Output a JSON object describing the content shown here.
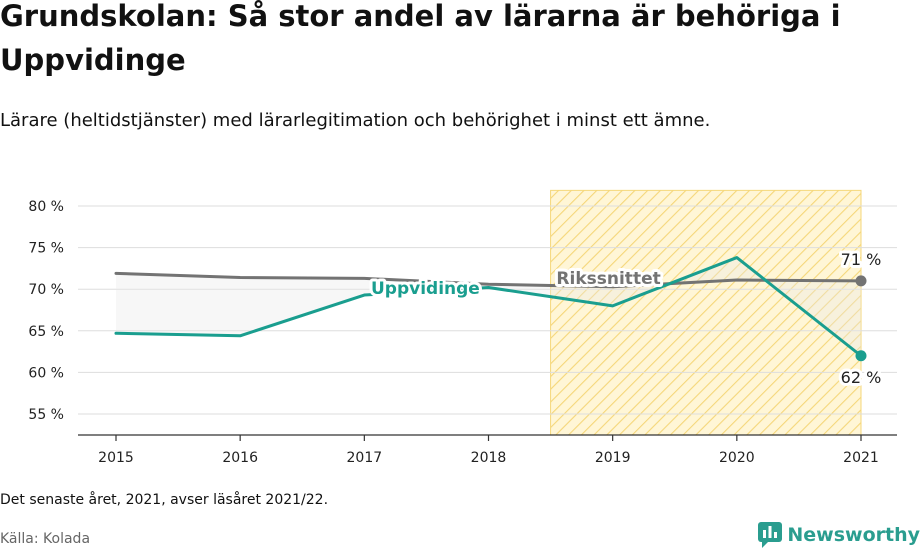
{
  "title": "Grundskolan: Så stor andel av lärarna är behöriga i Uppvidinge",
  "subtitle": "Lärare (heltidstjänster) med lärarlegitimation och behörighet i minst ett ämne.",
  "footnote": "Det senaste året, 2021, avser läsåret 2021/22.",
  "source": "Källa: Kolada",
  "brand": {
    "name": "Newsworthy",
    "icon": "bar-chart-speech-bubble-icon"
  },
  "colors": {
    "uppvidinge": "#1a9e8f",
    "riksnittet": "#737373",
    "highlight_fill": "#fff6d6",
    "highlight_hatch": "#f5d77a",
    "gap_fill": "#e8e8e8",
    "grid": "#dddddd"
  },
  "chart_data": {
    "type": "line",
    "x": [
      2015,
      2016,
      2017,
      2018,
      2019,
      2020,
      2021
    ],
    "ylim": [
      52,
      82
    ],
    "yticks": [
      55,
      60,
      65,
      70,
      75,
      80
    ],
    "ytick_labels": [
      "55 %",
      "60 %",
      "65 %",
      "70 %",
      "75 %",
      "80 %"
    ],
    "grid": true,
    "highlight_range": [
      2018.5,
      2021
    ],
    "series": [
      {
        "name": "Uppvidinge",
        "values": [
          64.7,
          64.4,
          69.3,
          70.2,
          68.0,
          73.8,
          62.0
        ]
      },
      {
        "name": "Rikssnittet",
        "values": [
          71.9,
          71.4,
          71.3,
          70.6,
          70.3,
          71.1,
          71.0
        ]
      }
    ],
    "end_labels": {
      "Uppvidinge": "62 %",
      "Rikssnittet": "71 %"
    }
  }
}
